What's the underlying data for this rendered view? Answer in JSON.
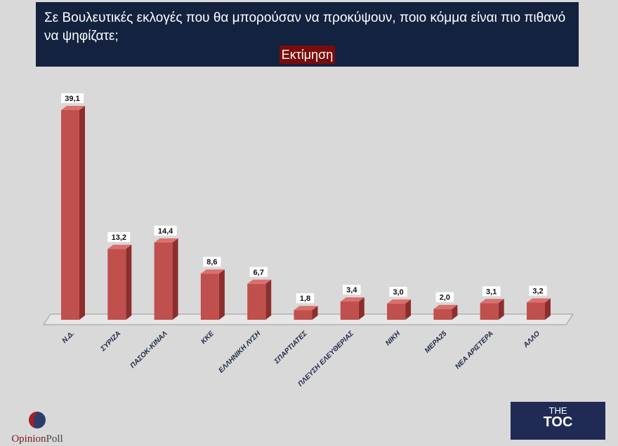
{
  "header": {
    "title": "Σε Βουλευτικές εκλογές που θα μπορούσαν να προκύψουν, ποιο κόμμα είναι πιο πιθανό να ψηφίζατε;",
    "subtitle": "Εκτίμηση"
  },
  "chart_data": {
    "type": "bar",
    "style": "3d-column",
    "categories": [
      "Ν.Δ.",
      "ΣΥΡΙΖΑ",
      "ΠΑΣΟΚ-ΚΙΝΑΛ",
      "ΚΚΕ",
      "ΕΛΛΗΝΙΚΗ ΛΥΣΗ",
      "ΣΠΑΡΤΙΑΤΕΣ",
      "ΠΛΕΥΣΗ ΕΛΕΥΘΕΡΙΑΣ",
      "ΝΙΚΗ",
      "ΜΕΡΑ25",
      "ΝΕΑ ΑΡΙΣΤΕΡΑ",
      "ΑΛΛΟ"
    ],
    "values": [
      39.1,
      13.2,
      14.4,
      8.6,
      6.7,
      1.8,
      3.4,
      3.0,
      2.0,
      3.1,
      3.2
    ],
    "value_labels": [
      "39,1",
      "13,2",
      "14,4",
      "8,6",
      "6,7",
      "1,8",
      "3,4",
      "3,0",
      "2,0",
      "3,1",
      "3,2"
    ],
    "ylim": [
      0,
      40
    ],
    "grid": false,
    "colors": {
      "bar": "#c0504d",
      "bar_side": "#8b2f2d",
      "bar_top": "#d9706d"
    }
  },
  "logos": {
    "left": {
      "text1": "Opinion",
      "text2": "Poll"
    },
    "right": {
      "line1": "THE",
      "line2": "TOC"
    }
  }
}
